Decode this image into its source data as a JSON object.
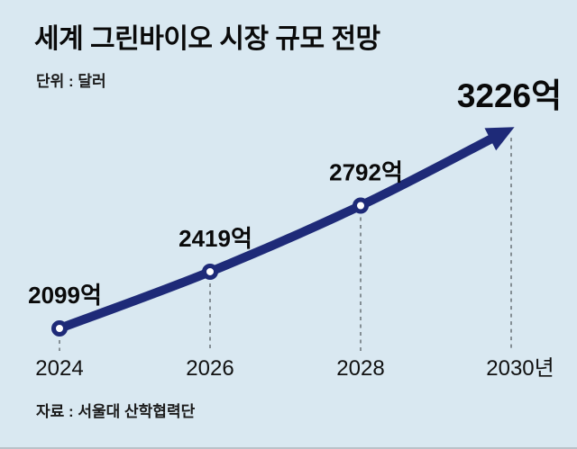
{
  "page": {
    "background_color": "#d9e8f1",
    "bottom_rule_color": "#b9c2c9"
  },
  "header": {
    "title": "세계 그린바이오 시장 규모 전망",
    "unit_label": "단위 : 달러"
  },
  "source": {
    "label": "자료 : 서울대 산학협력단"
  },
  "chart_data": {
    "type": "line",
    "title": "세계 그린바이오 시장 규모 전망",
    "unit": "달러",
    "categories": [
      "2024",
      "2026",
      "2028",
      "2030년"
    ],
    "values": [
      2099,
      2419,
      2792,
      3226
    ],
    "value_labels": [
      "2099억",
      "2419억",
      "2792억",
      "3226억"
    ],
    "ylim": [
      2000,
      3300
    ],
    "grid": "off",
    "legend": "none",
    "arrow_end": true,
    "line_color": "#1e2a78",
    "marker_fill": "#ffffff",
    "guide_line_color": "#6f777d"
  }
}
